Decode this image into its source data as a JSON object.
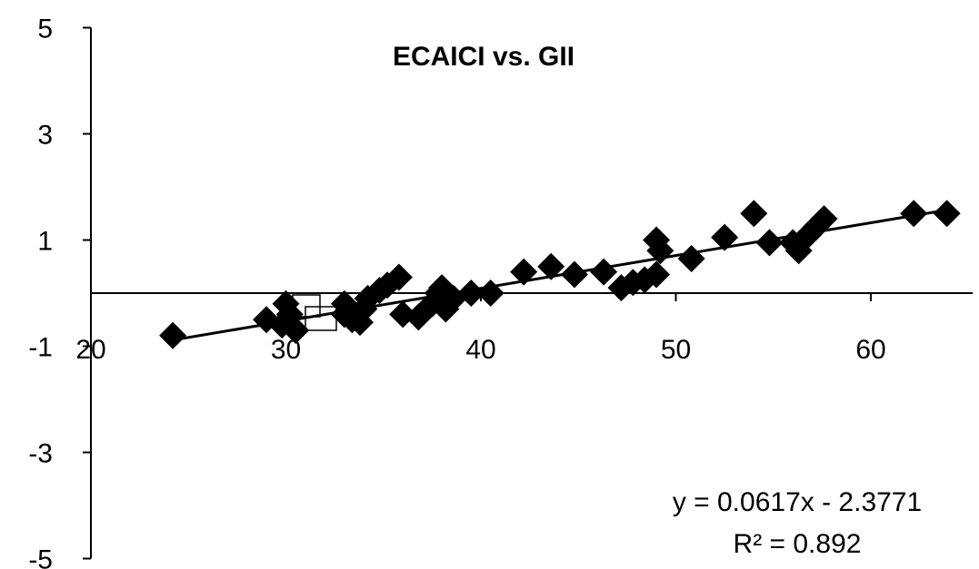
{
  "chart_data": {
    "type": "scatter",
    "title": "ECAICI vs. GII",
    "xlabel": "",
    "ylabel": "",
    "xlim": [
      20,
      65
    ],
    "ylim": [
      -5,
      5
    ],
    "x_ticks": [
      "20",
      "30",
      "40",
      "50",
      "60"
    ],
    "y_ticks": [
      "5",
      "3",
      "1",
      "-1",
      "-3",
      "-5"
    ],
    "marker": "diamond",
    "marker_color": "#000000",
    "series": [
      {
        "points": [
          [
            24.2,
            -0.8
          ],
          [
            29.0,
            -0.5
          ],
          [
            29.8,
            -0.6
          ],
          [
            30.2,
            -0.4
          ],
          [
            30.0,
            -0.2
          ],
          [
            30.5,
            -0.7
          ],
          [
            33.0,
            -0.2
          ],
          [
            33.0,
            -0.4
          ],
          [
            33.4,
            -0.5
          ],
          [
            33.8,
            -0.55
          ],
          [
            34.0,
            -0.3
          ],
          [
            34.2,
            -0.1
          ],
          [
            34.8,
            0.05
          ],
          [
            35.2,
            0.15
          ],
          [
            35.8,
            0.3
          ],
          [
            36.0,
            -0.4
          ],
          [
            36.8,
            -0.45
          ],
          [
            37.5,
            -0.2
          ],
          [
            37.8,
            0.0
          ],
          [
            38.0,
            0.1
          ],
          [
            38.2,
            -0.3
          ],
          [
            38.6,
            -0.1
          ],
          [
            39.5,
            0.0
          ],
          [
            40.5,
            0.0
          ],
          [
            42.2,
            0.4
          ],
          [
            43.6,
            0.5
          ],
          [
            44.8,
            0.35
          ],
          [
            46.3,
            0.4
          ],
          [
            47.2,
            0.1
          ],
          [
            47.8,
            0.2
          ],
          [
            48.4,
            0.25
          ],
          [
            49.0,
            0.35
          ],
          [
            49.0,
            1.0
          ],
          [
            49.2,
            0.8
          ],
          [
            50.8,
            0.65
          ],
          [
            52.5,
            1.05
          ],
          [
            54.0,
            1.5
          ],
          [
            54.8,
            0.95
          ],
          [
            56.0,
            0.95
          ],
          [
            56.3,
            0.8
          ],
          [
            56.8,
            1.1
          ],
          [
            57.2,
            1.25
          ],
          [
            57.6,
            1.4
          ],
          [
            62.2,
            1.5
          ],
          [
            63.9,
            1.5
          ]
        ]
      }
    ],
    "trendline": {
      "slope": 0.0617,
      "intercept": -2.3771,
      "x_range": [
        24.2,
        63.9
      ]
    },
    "equation": "y = 0.0617x - 2.3771",
    "r_squared": "R² = 0.892",
    "grid": false,
    "legend": "none"
  }
}
